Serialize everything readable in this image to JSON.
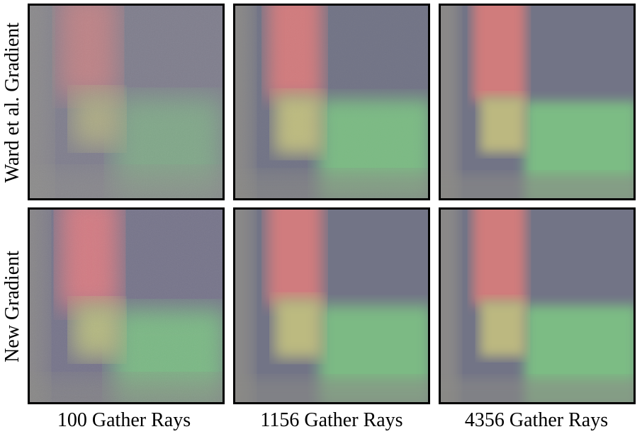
{
  "rows": [
    {
      "label": "Ward et al. Gradient"
    },
    {
      "label": "New Gradient"
    }
  ],
  "columns": [
    {
      "label": "100 Gather Rays"
    },
    {
      "label": "1156 Gather Rays"
    },
    {
      "label": "4356 Gather Rays"
    }
  ],
  "colors": {
    "base_gray": "#8a8a88",
    "red_region": "#d07878",
    "slate_region": "#707080",
    "green_region": "#7cbc84",
    "yellow_corner": "#b8b880",
    "frame": "#000000"
  }
}
